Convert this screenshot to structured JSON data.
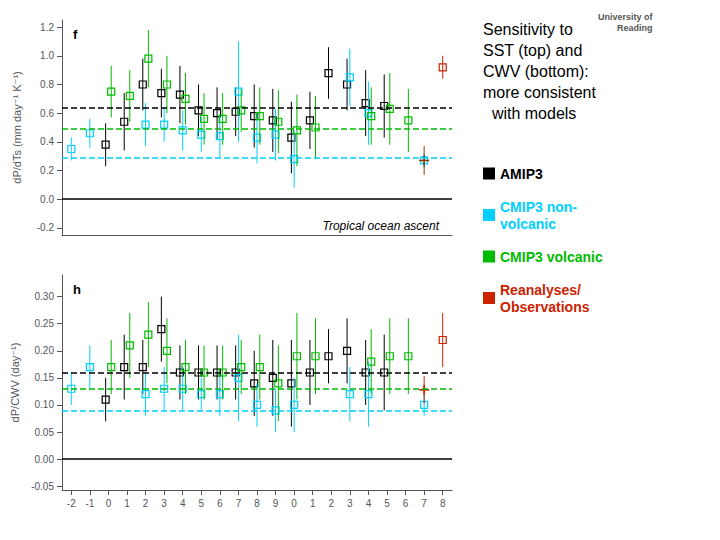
{
  "chart_data": [
    {
      "type": "scatter",
      "title": "Sensitivity to\nSST (top) and\nCWV (bottom):\nmore consistent\n  with models",
      "logo_text": "University of\nReading",
      "panel_label": "f",
      "annotation": "Tropical ocean ascent",
      "ylabel": "dP/dTs (mm day⁻¹ K⁻¹)",
      "categories": [
        "-2",
        "-1",
        "0",
        "1",
        "2",
        "3",
        "4",
        "5",
        "6",
        "7",
        "8",
        "9",
        "0",
        "1",
        "2",
        "3",
        "4",
        "5",
        "6",
        "7",
        "8"
      ],
      "tick_labels": "y",
      "grid": false,
      "legend": "right",
      "ylim": [
        -0.25,
        1.25
      ],
      "yticks": [
        -0.2,
        {
          "value": 0.0,
          "label": "0.0"
        },
        0.2,
        0.4,
        0.6,
        0.8,
        {
          "value": 1.0,
          "label": "1.0"
        },
        1.2
      ],
      "series": [
        {
          "name": "AMIP3",
          "color": "#000000",
          "marker": "square",
          "values": [
            null,
            null,
            0.38,
            0.54,
            0.8,
            0.74,
            0.73,
            0.62,
            0.6,
            0.61,
            0.58,
            0.55,
            0.43,
            0.55,
            0.88,
            0.8,
            0.67,
            0.65,
            null,
            null,
            null
          ],
          "errors": [
            null,
            null,
            0.15,
            0.2,
            0.18,
            0.17,
            0.2,
            0.18,
            0.18,
            0.17,
            0.22,
            0.22,
            0.25,
            0.2,
            0.18,
            0.18,
            0.23,
            0.22,
            null,
            null,
            null
          ]
        },
        {
          "name": "CMIP3 non-\nvolcanic",
          "color": "#00cfff",
          "marker": "square",
          "values": [
            0.35,
            0.46,
            null,
            null,
            0.52,
            0.52,
            0.48,
            0.45,
            0.44,
            0.75,
            0.43,
            0.45,
            0.28,
            null,
            null,
            0.85,
            0.6,
            null,
            null,
            0.27,
            null
          ],
          "errors": [
            0.08,
            0.1,
            null,
            null,
            0.15,
            0.12,
            0.14,
            0.12,
            0.15,
            0.35,
            0.18,
            0.18,
            0.2,
            null,
            null,
            0.2,
            0.22,
            null,
            null,
            0.05,
            null
          ]
        },
        {
          "name": "CMIP3 volcanic",
          "color": "#00bb00",
          "marker": "square",
          "values": [
            null,
            null,
            0.75,
            0.72,
            0.98,
            0.8,
            0.7,
            0.56,
            0.56,
            0.62,
            0.58,
            0.54,
            0.48,
            0.5,
            null,
            null,
            0.58,
            0.63,
            0.55,
            null,
            null
          ],
          "errors": [
            null,
            null,
            0.18,
            0.18,
            0.2,
            0.2,
            0.18,
            0.18,
            0.18,
            0.15,
            0.2,
            0.22,
            0.25,
            0.22,
            null,
            null,
            0.2,
            0.25,
            0.22,
            null,
            null
          ]
        },
        {
          "name": "Reanalyses/\nObservations",
          "color": "#cc2200",
          "marker": "square",
          "values": [
            null,
            null,
            null,
            null,
            null,
            null,
            null,
            null,
            null,
            null,
            null,
            null,
            null,
            null,
            null,
            null,
            null,
            null,
            null,
            null,
            0.92
          ],
          "errors": [
            null,
            null,
            null,
            null,
            null,
            null,
            null,
            null,
            null,
            null,
            null,
            null,
            null,
            null,
            null,
            null,
            null,
            null,
            null,
            null,
            0.08
          ]
        },
        {
          "color": "#8B3A00",
          "marker": "plus",
          "values": [
            null,
            null,
            null,
            null,
            null,
            null,
            null,
            null,
            null,
            null,
            null,
            null,
            null,
            null,
            null,
            null,
            null,
            null,
            null,
            0.27,
            null
          ],
          "errors": [
            null,
            null,
            null,
            null,
            null,
            null,
            null,
            null,
            null,
            null,
            null,
            null,
            null,
            null,
            null,
            null,
            null,
            null,
            null,
            0.1,
            null
          ]
        }
      ],
      "hlines": [
        {
          "value": 0.635,
          "color": "#000000",
          "line_style": "dashed"
        },
        {
          "value": 0.495,
          "color": "#00bb00",
          "line_style": "dashed"
        },
        {
          "value": 0.295,
          "color": "#00cfff",
          "line_style": "dashed"
        },
        {
          "value": 0,
          "color": "#000000",
          "line_style": "solid"
        }
      ]
    },
    {
      "type": "scatter",
      "panel_label": "h",
      "ylabel": "dP/CWV (day⁻¹)",
      "categories": [
        "-2",
        "-1",
        "0",
        "1",
        "2",
        "3",
        "4",
        "5",
        "6",
        "7",
        "8",
        "9",
        "0",
        "1",
        "2",
        "3",
        "4",
        "5",
        "6",
        "7",
        "8"
      ],
      "grid": false,
      "ylim": [
        -0.057,
        0.34
      ],
      "yticks": [
        -0.05,
        {
          "value": 0.0,
          "label": "0.00"
        },
        0.05,
        {
          "value": 0.1,
          "label": "0.10"
        },
        0.15,
        {
          "value": 0.2,
          "label": "0.20"
        },
        0.25,
        {
          "value": 0.3,
          "label": "0.30"
        }
      ],
      "series": [
        {
          "name": "AMIP3",
          "color": "#000000",
          "marker": "square",
          "values": [
            null,
            null,
            0.11,
            0.17,
            0.17,
            0.24,
            0.16,
            0.16,
            0.16,
            0.16,
            0.14,
            0.15,
            0.14,
            0.16,
            0.19,
            0.2,
            0.16,
            0.16,
            null,
            null,
            null
          ],
          "errors": [
            null,
            null,
            0.04,
            0.06,
            0.05,
            0.06,
            0.05,
            0.05,
            0.05,
            0.05,
            0.06,
            0.07,
            0.08,
            0.06,
            0.05,
            0.06,
            0.06,
            0.07,
            null,
            null,
            null
          ]
        },
        {
          "name": "CMIP3 non-\nvolcanic",
          "color": "#00cfff",
          "marker": "square",
          "values": [
            0.13,
            0.17,
            null,
            null,
            0.12,
            0.13,
            0.13,
            0.12,
            0.12,
            0.15,
            0.1,
            0.09,
            0.1,
            null,
            null,
            0.12,
            0.12,
            null,
            null,
            0.1,
            null
          ],
          "errors": [
            0.03,
            0.04,
            null,
            null,
            0.04,
            0.04,
            0.04,
            0.03,
            0.04,
            0.08,
            0.04,
            0.04,
            0.05,
            null,
            null,
            0.05,
            0.06,
            null,
            null,
            0.02,
            null
          ]
        },
        {
          "name": "CMIP3 volcanic",
          "color": "#00bb00",
          "marker": "square",
          "values": [
            null,
            null,
            0.17,
            0.21,
            0.23,
            0.2,
            0.17,
            0.16,
            0.16,
            0.17,
            0.17,
            0.14,
            0.19,
            0.19,
            null,
            null,
            0.18,
            0.19,
            0.19,
            null,
            null
          ],
          "errors": [
            null,
            null,
            0.05,
            0.06,
            0.06,
            0.06,
            0.05,
            0.05,
            0.05,
            0.05,
            0.06,
            0.07,
            0.08,
            0.07,
            null,
            null,
            0.06,
            0.07,
            0.07,
            null,
            null
          ]
        },
        {
          "name": "Reanalyses/\nObservations",
          "color": "#cc2200",
          "marker": "square",
          "values": [
            null,
            null,
            null,
            null,
            null,
            null,
            null,
            null,
            null,
            null,
            null,
            null,
            null,
            null,
            null,
            null,
            null,
            null,
            null,
            null,
            0.22
          ],
          "errors": [
            null,
            null,
            null,
            null,
            null,
            null,
            null,
            null,
            null,
            null,
            null,
            null,
            null,
            null,
            null,
            null,
            null,
            null,
            null,
            null,
            0.05
          ]
        },
        {
          "color": "#cc2200",
          "marker": "plus",
          "values": [
            null,
            null,
            null,
            null,
            null,
            null,
            null,
            null,
            null,
            null,
            null,
            null,
            null,
            null,
            null,
            null,
            null,
            null,
            null,
            0.128,
            null
          ],
          "errors": [
            null,
            null,
            null,
            null,
            null,
            null,
            null,
            null,
            null,
            null,
            null,
            null,
            null,
            null,
            null,
            null,
            null,
            null,
            null,
            0.025,
            null
          ]
        }
      ],
      "hlines": [
        {
          "value": 0.16,
          "color": "#000000",
          "line_style": "dashed"
        },
        {
          "value": 0.133,
          "color": "#00bb00",
          "line_style": "dashed"
        },
        {
          "value": 0.093,
          "color": "#00cfff",
          "line_style": "dashed"
        },
        {
          "value": 0,
          "color": "#000000",
          "line_style": "solid"
        }
      ]
    }
  ]
}
